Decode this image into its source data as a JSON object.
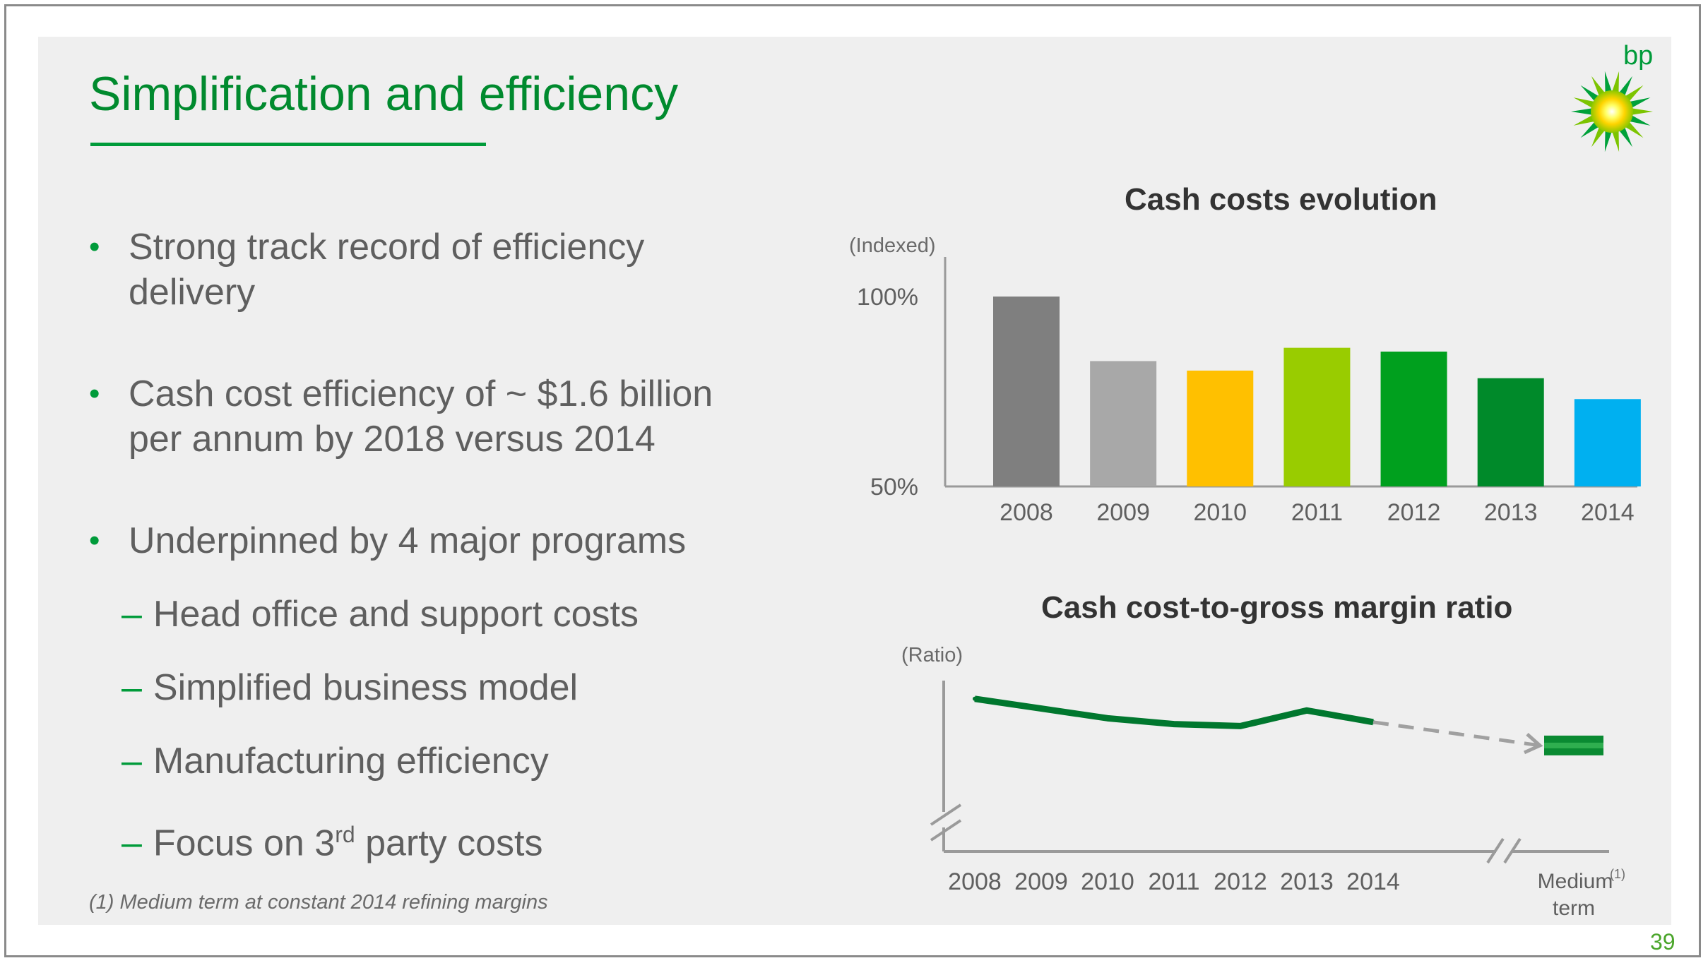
{
  "slide": {
    "title": "Simplification and efficiency",
    "page_number": "39",
    "logo_text": "bp",
    "footnote": "(1) Medium term at constant 2014 refining margins",
    "colors": {
      "brand_green": "#009b3a",
      "background": "#efefef",
      "text": "#5f5f5f"
    }
  },
  "bullets": [
    {
      "line1": "Strong track record of efficiency",
      "line2": "delivery"
    },
    {
      "line1": "Cash cost efficiency of ~ $1.6 billion",
      "line2": "per annum by 2018 versus 2014"
    },
    {
      "line1": "Underpinned by 4 major programs"
    }
  ],
  "sub_bullets": {
    "dash": "–",
    "items": [
      "Head office and support costs",
      "Simplified business model",
      "Manufacturing efficiency"
    ],
    "last_prefix": "Focus on 3",
    "last_superscript": "rd",
    "last_suffix": " party costs"
  },
  "chart_data": [
    {
      "type": "bar",
      "title": "Cash costs evolution",
      "ylabel": "(Indexed)",
      "ytick_labels": [
        "100%",
        "50%"
      ],
      "ylim": [
        50,
        100
      ],
      "categories": [
        "2008",
        "2009",
        "2010",
        "2011",
        "2012",
        "2013",
        "2014"
      ],
      "values": [
        100,
        83,
        80.5,
        86.5,
        85.5,
        78.5,
        73
      ],
      "colors": [
        "#7f7f7f",
        "#a8a8a8",
        "#ffc000",
        "#99cc00",
        "#00a01e",
        "#008a2a",
        "#00b0f0"
      ],
      "grid": false
    },
    {
      "type": "line",
      "title": "Cash cost-to-gross margin ratio",
      "ylabel": "(Ratio)",
      "x": [
        "2008",
        "2009",
        "2010",
        "2011",
        "2012",
        "2013",
        "2014"
      ],
      "values": [
        10,
        9.5,
        9.0,
        8.7,
        8.6,
        9.4,
        8.8
      ],
      "ylim": [
        6,
        10.5
      ],
      "y_axis_broken": true,
      "line_color": "#00772e",
      "projection": {
        "label": "Medium",
        "label_line2": "term",
        "superscript": "(1)",
        "value": 7.6,
        "style": "dashed-arrow"
      }
    }
  ]
}
